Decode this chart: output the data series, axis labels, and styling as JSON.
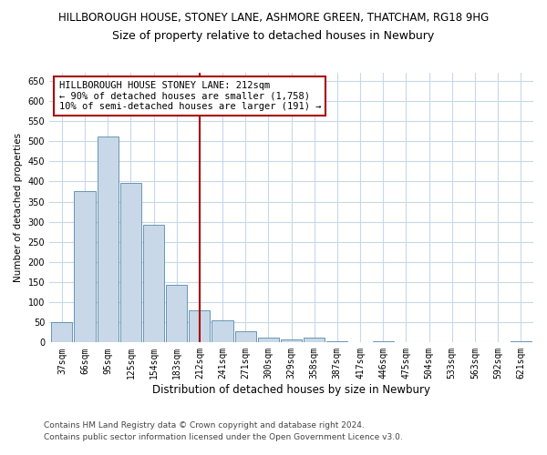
{
  "title1": "HILLBOROUGH HOUSE, STONEY LANE, ASHMORE GREEN, THATCHAM, RG18 9HG",
  "title2": "Size of property relative to detached houses in Newbury",
  "xlabel": "Distribution of detached houses by size in Newbury",
  "ylabel": "Number of detached properties",
  "categories": [
    "37sqm",
    "66sqm",
    "95sqm",
    "125sqm",
    "154sqm",
    "183sqm",
    "212sqm",
    "241sqm",
    "271sqm",
    "300sqm",
    "329sqm",
    "358sqm",
    "387sqm",
    "417sqm",
    "446sqm",
    "475sqm",
    "504sqm",
    "533sqm",
    "563sqm",
    "592sqm",
    "621sqm"
  ],
  "values": [
    50,
    375,
    512,
    397,
    292,
    143,
    80,
    54,
    29,
    11,
    8,
    12,
    3,
    0,
    4,
    0,
    0,
    0,
    0,
    0,
    3
  ],
  "bar_color": "#c8d8e8",
  "bar_edge_color": "#5588aa",
  "highlight_index": 6,
  "highlight_color": "#aa0000",
  "ylim": [
    0,
    670
  ],
  "yticks": [
    0,
    50,
    100,
    150,
    200,
    250,
    300,
    350,
    400,
    450,
    500,
    550,
    600,
    650
  ],
  "annotation_title": "HILLBOROUGH HOUSE STONEY LANE: 212sqm",
  "annotation_line1": "← 90% of detached houses are smaller (1,758)",
  "annotation_line2": "10% of semi-detached houses are larger (191) →",
  "footnote1": "Contains HM Land Registry data © Crown copyright and database right 2024.",
  "footnote2": "Contains public sector information licensed under the Open Government Licence v3.0.",
  "bg_color": "#ffffff",
  "grid_color": "#c8d8ea",
  "title1_fontsize": 8.5,
  "title2_fontsize": 9.0,
  "annotation_fontsize": 7.5,
  "ylabel_fontsize": 7.5,
  "xlabel_fontsize": 8.5,
  "footnote_fontsize": 6.5,
  "tick_fontsize": 7.0
}
